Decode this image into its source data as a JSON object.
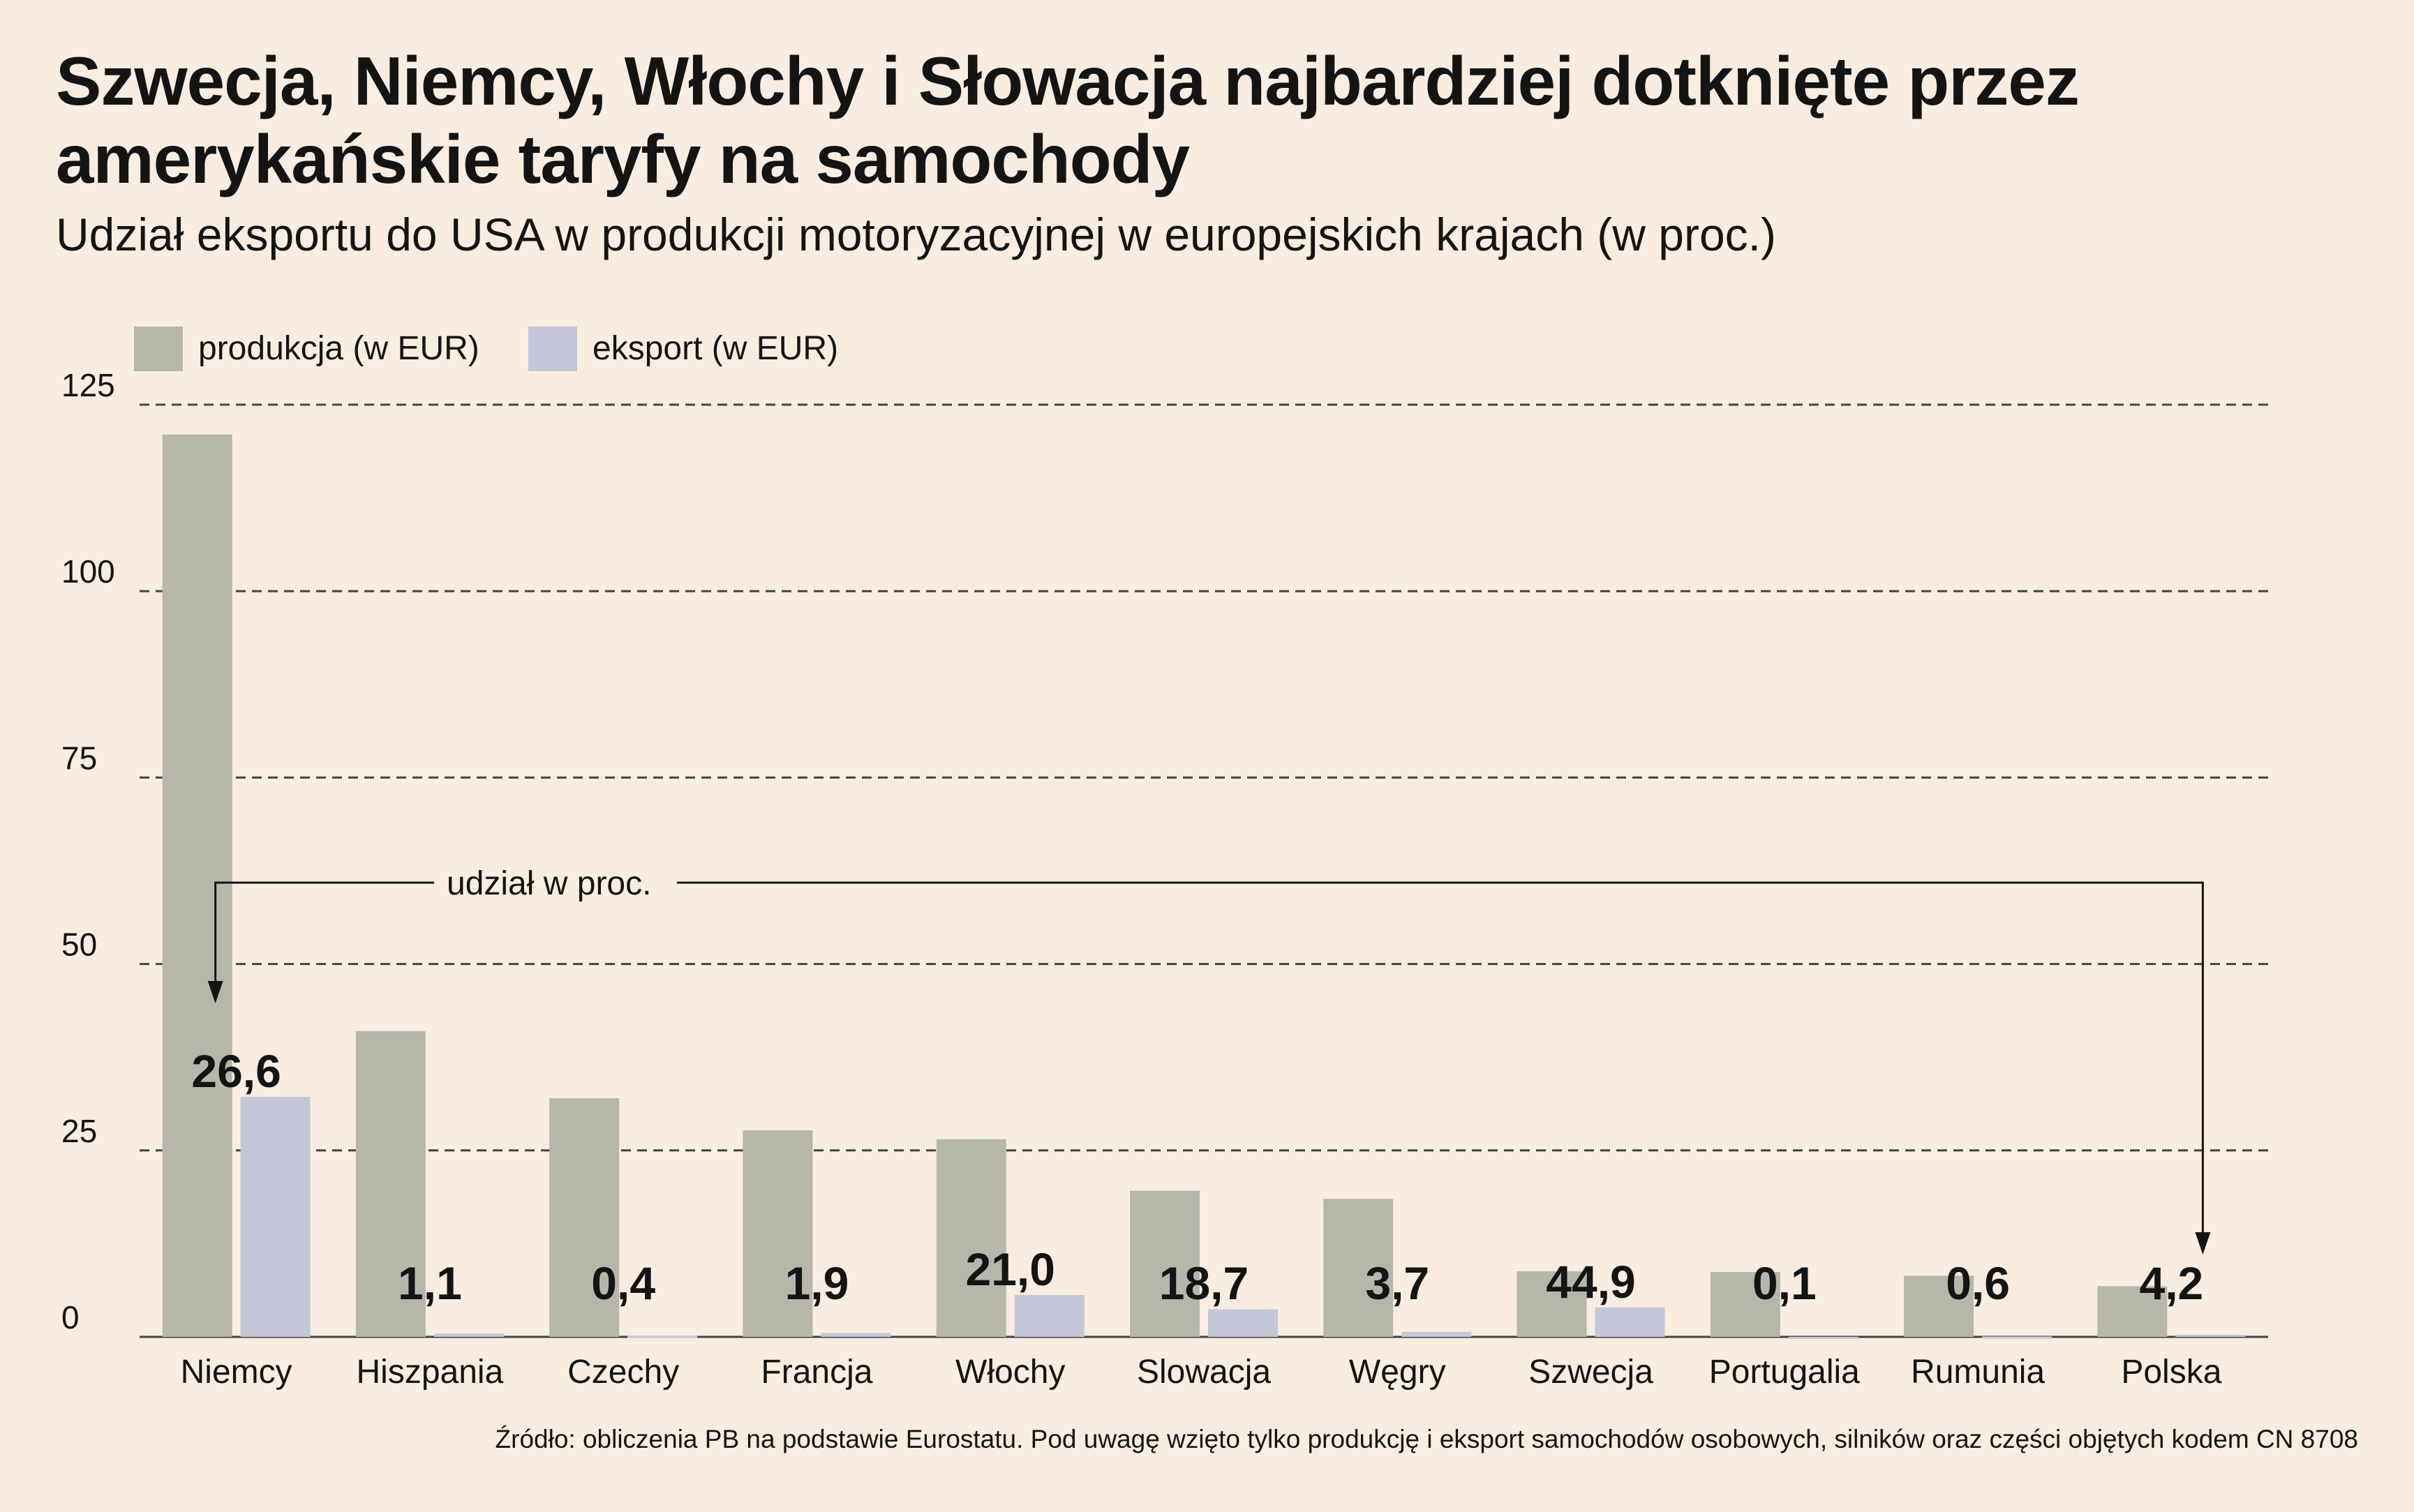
{
  "title": "Szwecja, Niemcy, Włochy i Słowacja najbardziej dotknięte przez amerykańskie taryfy na samochody",
  "subtitle": "Udział eksportu do USA w produkcji motoryzacyjnej w europejskich krajach (w proc.)",
  "source": "Źródło: obliczenia PB na podstawie Eurostatu. Pod uwagę wzięto tylko produkcję i eksport samochodów osobowych, silników oraz części objętych kodem CN 8708",
  "colors": {
    "background": "#f9ede1",
    "produkcja": "#b6b6ab",
    "eksport": "#c3c7d7",
    "grid": "#444444",
    "text": "#141414"
  },
  "legend": [
    {
      "label": "produkcja (w EUR)",
      "color": "#b6b6ab"
    },
    {
      "label": "eksport (w EUR)",
      "color": "#c3c7d7"
    }
  ],
  "annotation": {
    "text": "udział w proc."
  },
  "chart_data": {
    "type": "bar",
    "categories": [
      "Niemcy",
      "Hiszpania",
      "Czechy",
      "Francja",
      "Włochy",
      "Slowacja",
      "Węgry",
      "Szwecja",
      "Portugalia",
      "Rumunia",
      "Polska"
    ],
    "series": [
      {
        "name": "produkcja (w EUR)",
        "values": [
          121,
          41,
          32,
          27.7,
          26.5,
          19.6,
          18.5,
          8.8,
          8.7,
          8.2,
          6.8
        ]
      },
      {
        "name": "eksport (w EUR)",
        "values": [
          32.2,
          0.45,
          0.13,
          0.53,
          5.6,
          3.7,
          0.68,
          3.95,
          0.01,
          0.05,
          0.29
        ]
      }
    ],
    "share_labels": [
      "26,6",
      "1,1",
      "0,4",
      "1,9",
      "21,0",
      "18,7",
      "3,7",
      "44,9",
      "0,1",
      "0,6",
      "4,2"
    ],
    "yticks": [
      "0",
      "25",
      "50",
      "75",
      "100",
      "125"
    ],
    "ylim": [
      0,
      125
    ],
    "xlabel": "",
    "ylabel": "",
    "grid": true,
    "legend_position": "top-left"
  }
}
